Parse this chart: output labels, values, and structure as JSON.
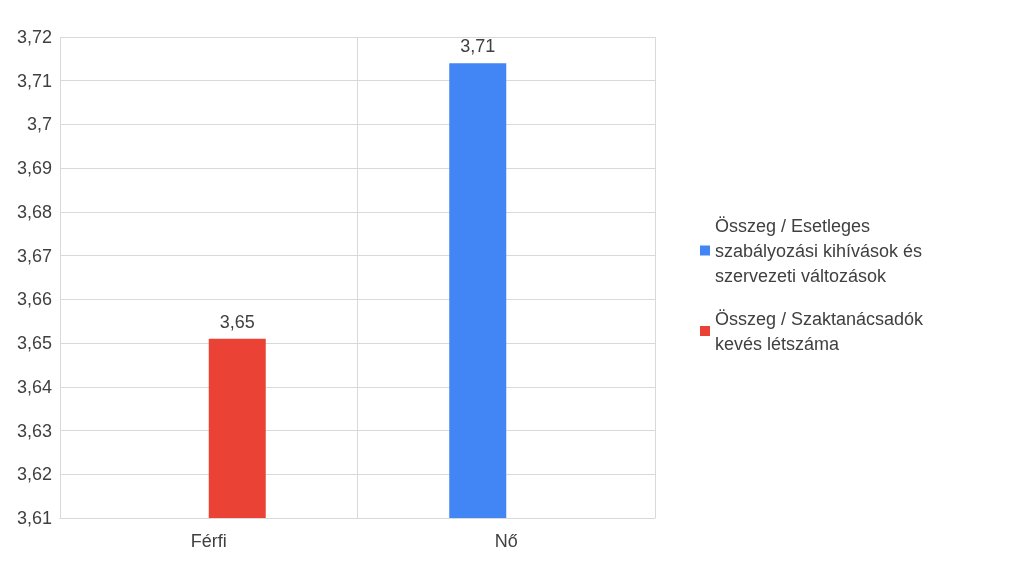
{
  "chart_data": {
    "type": "bar",
    "categories": [
      "Férfi",
      "Nő"
    ],
    "series": [
      {
        "name": "Összeg / Esetleges szabályozási kihívások és szervezeti változások",
        "color": "#4285f4",
        "values": [
          null,
          3.714
        ],
        "value_labels": [
          null,
          "3,71"
        ]
      },
      {
        "name": "Összeg / Szaktanácsadók kevés létszáma",
        "color": "#ea4335",
        "values": [
          3.651,
          null
        ],
        "value_labels": [
          "3,65",
          null
        ]
      }
    ],
    "ylim": [
      3.61,
      3.72
    ],
    "yticks": [
      {
        "value": 3.61,
        "label": "3,61"
      },
      {
        "value": 3.62,
        "label": "3,62"
      },
      {
        "value": 3.63,
        "label": "3,63"
      },
      {
        "value": 3.64,
        "label": "3,64"
      },
      {
        "value": 3.65,
        "label": "3,65"
      },
      {
        "value": 3.66,
        "label": "3,66"
      },
      {
        "value": 3.67,
        "label": "3,67"
      },
      {
        "value": 3.68,
        "label": "3,68"
      },
      {
        "value": 3.69,
        "label": "3,69"
      },
      {
        "value": 3.7,
        "label": "3,7"
      },
      {
        "value": 3.71,
        "label": "3,71"
      },
      {
        "value": 3.72,
        "label": "3,72"
      }
    ],
    "grid": true,
    "legend": "right"
  }
}
